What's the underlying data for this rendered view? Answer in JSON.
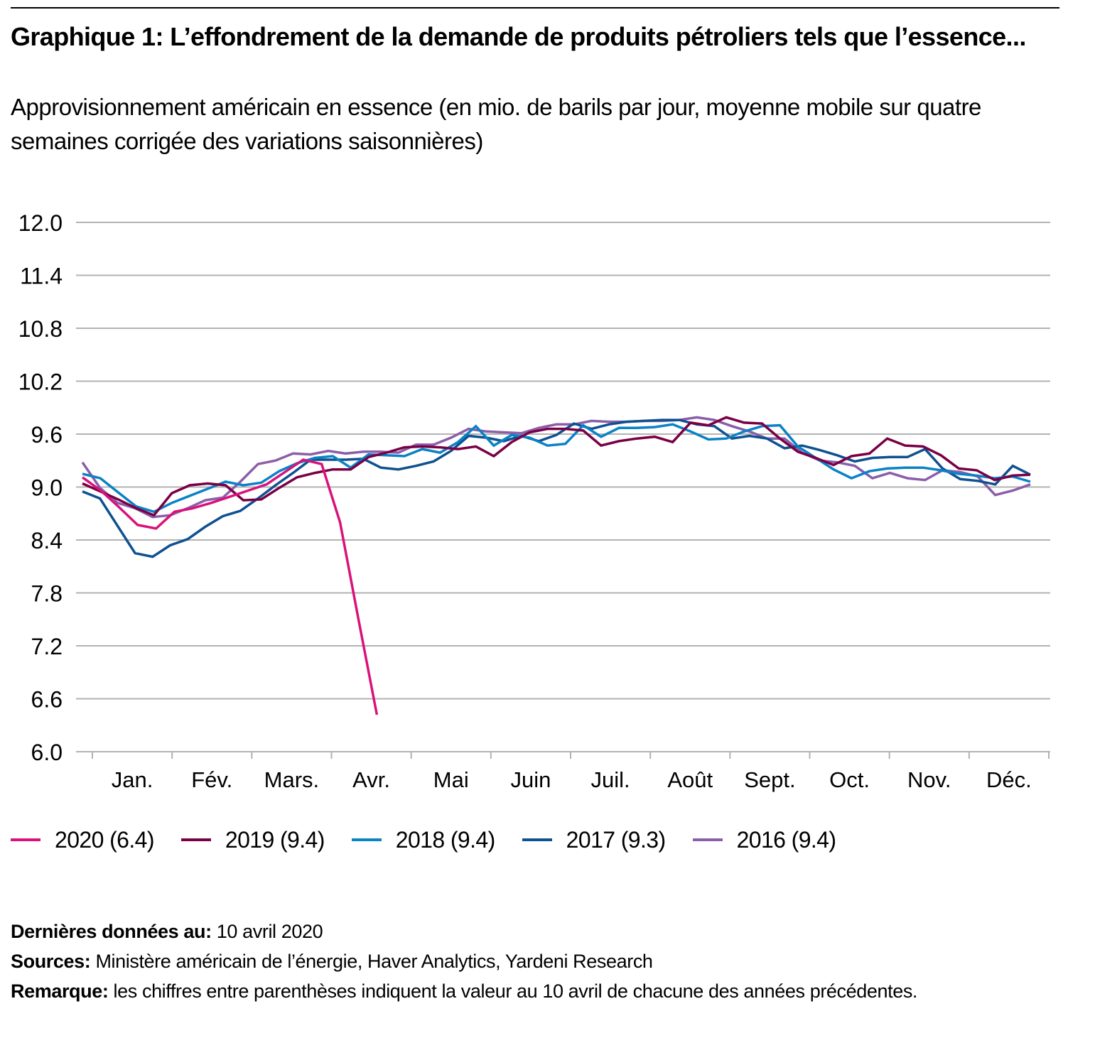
{
  "header": {
    "title": "Graphique 1: L’effondrement de la demande de produits pétroliers tels que l’essence...",
    "subtitle": "Approvisionnement américain en essence (en mio. de barils par jour, moyenne mobile sur quatre semaines corrigée des variations saisonnières)"
  },
  "chart_data": {
    "type": "line",
    "title": "Graphique 1: L’effondrement de la demande de produits pétroliers tels que l’essence...",
    "subtitle": "Approvisionnement américain en essence (en mio. de barils par jour, moyenne mobile sur quatre semaines corrigée des variations saisonnières)",
    "xlabel": "",
    "ylabel": "",
    "ylim": [
      6.0,
      12.0
    ],
    "yticks": [
      "12.0",
      "11.4",
      "10.8",
      "10.2",
      "9.6",
      "9.0",
      "8.4",
      "7.8",
      "7.2",
      "6.6",
      "6.0"
    ],
    "ytick_values": [
      12.0,
      11.4,
      10.8,
      10.2,
      9.6,
      9.0,
      8.4,
      7.8,
      7.2,
      6.6,
      6.0
    ],
    "categories": [
      "Jan.",
      "Fév.",
      "Mars.",
      "Avr.",
      "Mai",
      "Juin",
      "Juil.",
      "Août",
      "Sept.",
      "Oct.",
      "Nov.",
      "Déc."
    ],
    "x_unit": "week of year (1-52)",
    "grid": true,
    "legend_position": "bottom-left",
    "series": [
      {
        "name": "2020 (6.4)",
        "color": "#d9127b",
        "values": [
          9.11,
          8.96,
          8.77,
          8.57,
          8.53,
          8.72,
          8.76,
          8.82,
          8.89,
          8.96,
          9.03,
          9.17,
          9.31,
          9.26,
          8.6,
          7.5,
          6.42
        ]
      },
      {
        "name": "2019 (9.4)",
        "color": "#7a0046",
        "values": [
          9.04,
          8.95,
          8.86,
          8.76,
          8.68,
          8.93,
          9.02,
          9.04,
          9.02,
          8.85,
          8.86,
          8.99,
          9.11,
          9.16,
          9.2,
          9.2,
          9.34,
          9.39,
          9.45,
          9.46,
          9.45,
          9.43,
          9.46,
          9.35,
          9.51,
          9.62,
          9.66,
          9.66,
          9.64,
          9.47,
          9.52,
          9.55,
          9.57,
          9.51,
          9.73,
          9.7,
          9.79,
          9.73,
          9.72,
          9.55,
          9.4,
          9.33,
          9.25,
          9.35,
          9.38,
          9.55,
          9.47,
          9.46,
          9.36,
          9.21,
          9.19,
          9.08,
          9.13,
          9.14
        ]
      },
      {
        "name": "2018 (9.4)",
        "color": "#0a82c6",
        "values": [
          9.15,
          9.1,
          8.94,
          8.78,
          8.72,
          8.82,
          8.9,
          8.98,
          9.06,
          9.02,
          9.05,
          9.18,
          9.27,
          9.33,
          9.35,
          9.22,
          9.37,
          9.36,
          9.35,
          9.43,
          9.39,
          9.51,
          9.69,
          9.47,
          9.59,
          9.56,
          9.47,
          9.49,
          9.7,
          9.57,
          9.67,
          9.67,
          9.68,
          9.71,
          9.63,
          9.54,
          9.55,
          9.63,
          9.69,
          9.7,
          9.46,
          9.33,
          9.2,
          9.1,
          9.18,
          9.21,
          9.22,
          9.22,
          9.19,
          9.15,
          9.13,
          9.1,
          9.12,
          9.06
        ]
      },
      {
        "name": "2017 (9.3)",
        "color": "#0e5190",
        "values": [
          8.95,
          8.87,
          8.56,
          8.25,
          8.21,
          8.34,
          8.41,
          8.55,
          8.67,
          8.73,
          8.87,
          9.02,
          9.16,
          9.31,
          9.31,
          9.31,
          9.32,
          9.22,
          9.2,
          9.24,
          9.29,
          9.41,
          9.58,
          9.56,
          9.52,
          9.58,
          9.52,
          9.59,
          9.72,
          9.66,
          9.71,
          9.74,
          9.75,
          9.76,
          9.76,
          9.71,
          9.69,
          9.55,
          9.58,
          9.55,
          9.44,
          9.47,
          9.42,
          9.36,
          9.29,
          9.33,
          9.34,
          9.34,
          9.43,
          9.21,
          9.09,
          9.07,
          9.03,
          9.24,
          9.14
        ]
      },
      {
        "name": "2016 (9.4)",
        "color": "#8b5ea8",
        "values": [
          9.28,
          8.99,
          8.82,
          8.76,
          8.66,
          8.68,
          8.76,
          8.85,
          8.88,
          9.06,
          9.26,
          9.3,
          9.38,
          9.37,
          9.41,
          9.38,
          9.4,
          9.4,
          9.39,
          9.48,
          9.48,
          9.56,
          9.66,
          9.63,
          9.62,
          9.61,
          9.67,
          9.71,
          9.71,
          9.75,
          9.74,
          9.74,
          9.75,
          9.75,
          9.76,
          9.79,
          9.76,
          9.69,
          9.63,
          9.55,
          9.55,
          9.39,
          9.3,
          9.28,
          9.24,
          9.1,
          9.16,
          9.1,
          9.08,
          9.19,
          9.17,
          9.12,
          8.91,
          8.96,
          9.03
        ]
      }
    ]
  },
  "legend": {
    "items": [
      {
        "label": "2020 (6.4)",
        "color": "#d9127b"
      },
      {
        "label": "2019 (9.4)",
        "color": "#7a0046"
      },
      {
        "label": "2018 (9.4)",
        "color": "#0a82c6"
      },
      {
        "label": "2017 (9.3)",
        "color": "#0e5190"
      },
      {
        "label": "2016 (9.4)",
        "color": "#8b5ea8"
      }
    ]
  },
  "footer": {
    "last_data_label": "Dernières données au:",
    "last_data_value": " 10 avril 2020",
    "sources_label": "Sources:",
    "sources_value": " Ministère américain de l’énergie, Haver Analytics, Yardeni Research",
    "note_label": "Remarque:",
    "note_value": " les chiffres entre parenthèses indiquent la valeur au 10 avril de chacune des années précédentes."
  }
}
